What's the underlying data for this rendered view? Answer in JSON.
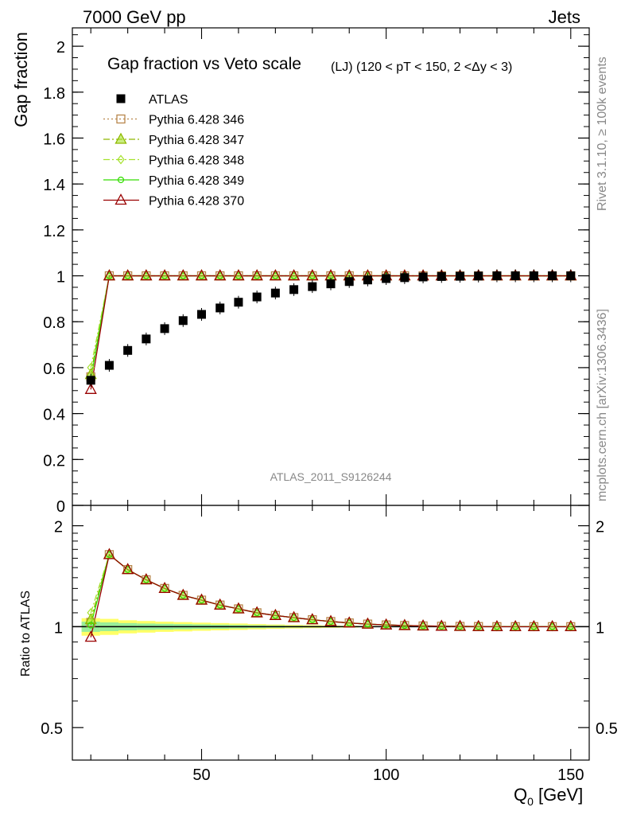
{
  "header": {
    "left": "7000 GeV pp",
    "right": "Jets"
  },
  "side_labels": {
    "rivet": "Rivet 3.1.10, ≥ 100k events",
    "mcplots": "mcplots.cern.ch [arXiv:1306.3436]"
  },
  "chart_data": [
    {
      "type": "scatter",
      "title": "Gap fraction vs Veto scale",
      "title_suffix": "(LJ) (120 < pT < 150, 2 <Δy < 3)",
      "ylabel": "Gap fraction",
      "xlabel": "",
      "analysis": "ATLAS_2011_S9126244",
      "xlim": [
        15,
        155
      ],
      "ylim": [
        0,
        2.08
      ],
      "yticks": [
        0,
        0.2,
        0.4,
        0.6,
        0.8,
        1,
        1.2,
        1.4,
        1.6,
        1.8,
        2
      ],
      "ytick_labels": [
        "0",
        "0.2",
        "0.4",
        "0.6",
        "0.8",
        "1",
        "1.2",
        "1.4",
        "1.6",
        "1.8",
        "2"
      ],
      "legend_position": "top-left",
      "x": [
        20,
        25,
        30,
        35,
        40,
        45,
        50,
        55,
        60,
        65,
        70,
        75,
        80,
        85,
        90,
        95,
        100,
        105,
        110,
        115,
        120,
        125,
        130,
        135,
        140,
        145,
        150
      ],
      "series": [
        {
          "name": "ATLAS",
          "color": "#000000",
          "marker": "square",
          "values": [
            0.545,
            0.61,
            0.675,
            0.725,
            0.77,
            0.805,
            0.832,
            0.86,
            0.885,
            0.908,
            0.925,
            0.94,
            0.953,
            0.965,
            0.975,
            0.982,
            0.988,
            0.992,
            0.995,
            0.997,
            0.998,
            0.999,
            1.0,
            1.0,
            1.0,
            1.0,
            1.0
          ]
        },
        {
          "name": "Pythia 6.428 346",
          "color": "#b8864b",
          "marker": "open-square",
          "line": "dotted",
          "values": [
            0.56,
            1.0,
            1.0,
            1.0,
            1.0,
            1.0,
            1.0,
            1.0,
            1.0,
            1.0,
            1.0,
            1.0,
            1.0,
            1.0,
            1.0,
            1.0,
            1.0,
            1.0,
            1.0,
            1.0,
            1.0,
            1.0,
            1.0,
            1.0,
            1.0,
            1.0,
            1.0
          ]
        },
        {
          "name": "Pythia 6.428 347",
          "color": "#8fb800",
          "marker": "open-triangle",
          "line": "dashdot",
          "values": [
            0.57,
            1.0,
            1.0,
            1.0,
            1.0,
            1.0,
            1.0,
            1.0,
            1.0,
            1.0,
            1.0,
            1.0,
            1.0,
            1.0,
            1.0,
            1.0,
            1.0,
            1.0,
            1.0,
            1.0,
            1.0,
            1.0,
            1.0,
            1.0,
            1.0,
            1.0,
            1.0
          ]
        },
        {
          "name": "Pythia 6.428 348",
          "color": "#a6e22e",
          "marker": "open-diamond",
          "line": "dashdot",
          "values": [
            0.6,
            1.0,
            1.0,
            1.0,
            1.0,
            1.0,
            1.0,
            1.0,
            1.0,
            1.0,
            1.0,
            1.0,
            1.0,
            1.0,
            1.0,
            1.0,
            1.0,
            1.0,
            1.0,
            1.0,
            1.0,
            1.0,
            1.0,
            1.0,
            1.0,
            1.0,
            1.0
          ]
        },
        {
          "name": "Pythia 6.428 349",
          "color": "#33dd00",
          "marker": "open-circle",
          "line": "solid",
          "values": [
            0.55,
            1.0,
            1.0,
            1.0,
            1.0,
            1.0,
            1.0,
            1.0,
            1.0,
            1.0,
            1.0,
            1.0,
            1.0,
            1.0,
            1.0,
            1.0,
            1.0,
            1.0,
            1.0,
            1.0,
            1.0,
            1.0,
            1.0,
            1.0,
            1.0,
            1.0,
            1.0
          ]
        },
        {
          "name": "Pythia 6.428 370",
          "color": "#990000",
          "marker": "open-triangle",
          "line": "solid",
          "values": [
            0.505,
            1.0,
            1.0,
            1.0,
            1.0,
            1.0,
            1.0,
            1.0,
            1.0,
            1.0,
            1.0,
            1.0,
            1.0,
            1.0,
            1.0,
            1.0,
            1.0,
            1.0,
            1.0,
            1.0,
            1.0,
            1.0,
            1.0,
            1.0,
            1.0,
            1.0,
            1.0
          ]
        }
      ]
    },
    {
      "type": "line",
      "title": "",
      "ylabel": "Ratio to ATLAS",
      "xlabel": "Q",
      "xlabel_sub": "0",
      "xlabel_unit": " [GeV]",
      "xlim": [
        15,
        155
      ],
      "ylim": [
        0.4,
        2.3
      ],
      "xticks": [
        50,
        100,
        150
      ],
      "xtick_labels": [
        "50",
        "100",
        "150"
      ],
      "yticks": [
        0.5,
        1,
        2
      ],
      "ytick_labels": [
        "0.5",
        "1",
        "2"
      ],
      "band": {
        "x": [
          20,
          25,
          30,
          35,
          40,
          45,
          50,
          55,
          60,
          65,
          70,
          75,
          80,
          85,
          90,
          95,
          100
        ],
        "inner": [
          0.035,
          0.03,
          0.025,
          0.022,
          0.02,
          0.018,
          0.016,
          0.014,
          0.012,
          0.01,
          0.008,
          0.006,
          0.005,
          0.004,
          0.003,
          0.002,
          0.001
        ],
        "outer": [
          0.06,
          0.055,
          0.045,
          0.04,
          0.035,
          0.032,
          0.028,
          0.025,
          0.022,
          0.018,
          0.015,
          0.012,
          0.01,
          0.008,
          0.006,
          0.004,
          0.002
        ],
        "inner_color": "#99ee99",
        "outer_color": "#ffff66"
      },
      "x": [
        20,
        25,
        30,
        35,
        40,
        45,
        50,
        55,
        60,
        65,
        70,
        75,
        80,
        85,
        90,
        95,
        100,
        105,
        110,
        115,
        120,
        125,
        130,
        135,
        140,
        145,
        150
      ],
      "series": [
        {
          "name": "Pythia 6.428 346",
          "color": "#b8864b",
          "marker": "open-square",
          "line": "dotted",
          "values": [
            1.03,
            1.64,
            1.48,
            1.38,
            1.3,
            1.24,
            1.2,
            1.16,
            1.13,
            1.1,
            1.08,
            1.064,
            1.049,
            1.036,
            1.026,
            1.018,
            1.012,
            1.008,
            1.005,
            1.003,
            1.002,
            1.001,
            1.0,
            1.0,
            1.0,
            1.0,
            1.0
          ]
        },
        {
          "name": "Pythia 6.428 347",
          "color": "#8fb800",
          "marker": "open-triangle",
          "line": "dashdot",
          "values": [
            1.05,
            1.64,
            1.48,
            1.38,
            1.3,
            1.24,
            1.2,
            1.16,
            1.13,
            1.1,
            1.08,
            1.064,
            1.049,
            1.036,
            1.026,
            1.018,
            1.012,
            1.008,
            1.005,
            1.003,
            1.002,
            1.001,
            1.0,
            1.0,
            1.0,
            1.0,
            1.0
          ]
        },
        {
          "name": "Pythia 6.428 348",
          "color": "#a6e22e",
          "marker": "open-diamond",
          "line": "dashdot",
          "values": [
            1.1,
            1.64,
            1.48,
            1.38,
            1.3,
            1.24,
            1.2,
            1.16,
            1.13,
            1.1,
            1.08,
            1.064,
            1.049,
            1.036,
            1.026,
            1.018,
            1.012,
            1.008,
            1.005,
            1.003,
            1.002,
            1.001,
            1.0,
            1.0,
            1.0,
            1.0,
            1.0
          ]
        },
        {
          "name": "Pythia 6.428 349",
          "color": "#33dd00",
          "marker": "open-circle",
          "line": "solid",
          "values": [
            1.01,
            1.64,
            1.48,
            1.38,
            1.3,
            1.24,
            1.2,
            1.16,
            1.13,
            1.1,
            1.08,
            1.064,
            1.049,
            1.036,
            1.026,
            1.018,
            1.012,
            1.008,
            1.005,
            1.003,
            1.002,
            1.001,
            1.0,
            1.0,
            1.0,
            1.0,
            1.0
          ]
        },
        {
          "name": "Pythia 6.428 370",
          "color": "#990000",
          "marker": "open-triangle",
          "line": "solid",
          "values": [
            0.93,
            1.64,
            1.48,
            1.38,
            1.3,
            1.24,
            1.2,
            1.16,
            1.13,
            1.1,
            1.08,
            1.064,
            1.049,
            1.036,
            1.026,
            1.018,
            1.012,
            1.008,
            1.005,
            1.003,
            1.002,
            1.001,
            1.0,
            1.0,
            1.0,
            1.0,
            1.0
          ]
        }
      ]
    }
  ]
}
